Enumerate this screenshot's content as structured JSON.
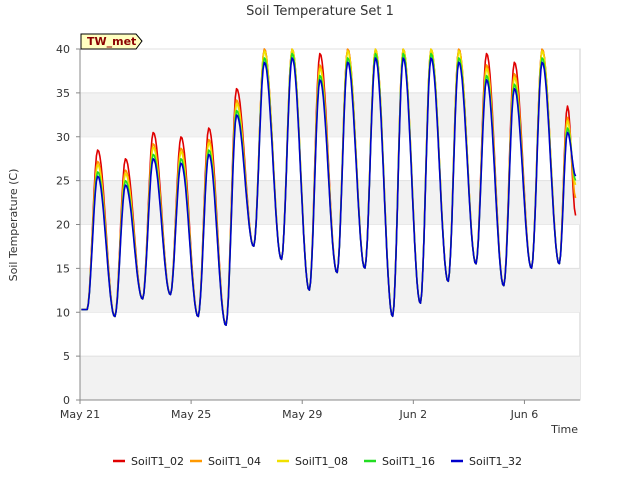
{
  "site_label": "TW_met",
  "chart_data": {
    "type": "line",
    "title": "Soil Temperature Set 1",
    "xlabel": "Time",
    "ylabel": "Soil Temperature (C)",
    "ylim": [
      0,
      40
    ],
    "yticks": [
      0,
      5,
      10,
      15,
      20,
      25,
      30,
      35,
      40
    ],
    "xlim": [
      "2024-05-21",
      "2024-06-08"
    ],
    "xticks": [
      {
        "date": "2024-05-21",
        "label": "May 21"
      },
      {
        "date": "2024-05-25",
        "label": "May 25"
      },
      {
        "date": "2024-05-29",
        "label": "May 29"
      },
      {
        "date": "2024-06-02",
        "label": "Jun 2"
      },
      {
        "date": "2024-06-06",
        "label": "Jun 6"
      }
    ],
    "grid": "horizontal bands",
    "legend_position": "bottom",
    "daily_extremes": [
      {
        "date": "2024-05-21",
        "min": 10.3,
        "max": 26
      },
      {
        "date": "2024-05-22",
        "min": 9.5,
        "max": 25
      },
      {
        "date": "2024-05-23",
        "min": 11.5,
        "max": 28
      },
      {
        "date": "2024-05-24",
        "min": 12,
        "max": 27.5
      },
      {
        "date": "2024-05-25",
        "min": 9.5,
        "max": 28.5
      },
      {
        "date": "2024-05-26",
        "min": 8.5,
        "max": 33
      },
      {
        "date": "2024-05-27",
        "min": 17.5,
        "max": 39
      },
      {
        "date": "2024-05-28",
        "min": 16,
        "max": 39.5
      },
      {
        "date": "2024-05-29",
        "min": 12.5,
        "max": 37
      },
      {
        "date": "2024-05-30",
        "min": 14.5,
        "max": 39
      },
      {
        "date": "2024-05-31",
        "min": 15,
        "max": 39.5
      },
      {
        "date": "2024-06-01",
        "min": 9.5,
        "max": 39.5
      },
      {
        "date": "2024-06-02",
        "min": 11,
        "max": 39.5
      },
      {
        "date": "2024-06-03",
        "min": 13.5,
        "max": 39
      },
      {
        "date": "2024-06-04",
        "min": 15.5,
        "max": 37
      },
      {
        "date": "2024-06-05",
        "min": 13,
        "max": 36
      },
      {
        "date": "2024-06-06",
        "min": 15,
        "max": 39
      },
      {
        "date": "2024-06-07",
        "min": 15.5,
        "max": 31
      }
    ],
    "series": [
      {
        "name": "SoilT1_02",
        "color": "#e00000",
        "amp_offset": 2.5,
        "end_value": 21.0
      },
      {
        "name": "SoilT1_04",
        "color": "#ff9900",
        "amp_offset": 1.2,
        "end_value": 23.0
      },
      {
        "name": "SoilT1_08",
        "color": "#f0e000",
        "amp_offset": 0.8,
        "end_value": 24.5
      },
      {
        "name": "SoilT1_16",
        "color": "#22dd22",
        "amp_offset": 0.0,
        "end_value": 25.0
      },
      {
        "name": "SoilT1_32",
        "color": "#0000cc",
        "amp_offset": -0.5,
        "end_value": 25.5
      }
    ]
  }
}
